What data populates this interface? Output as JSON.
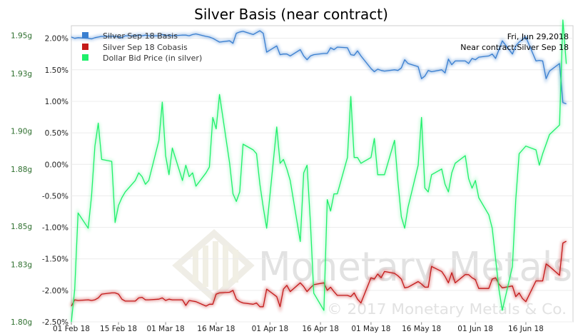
{
  "chart_data": {
    "type": "line",
    "title": "Silver Basis (near contract)",
    "info": [
      "Fri, Jun 29,2018",
      "Near contract:Silver Sep 18"
    ],
    "watermark": {
      "brand": "Monetary Metals",
      "copyright": "© 2017 Monetary Metals & Co."
    },
    "x_labels": [
      "01 Feb 18",
      "15 Feb 18",
      "01 Mar 18",
      "16 Mar 18",
      "01 Apr 18",
      "16 Apr 18",
      "01 May 18",
      "16 May 18",
      "01 Jun 18",
      "16 Jun 18"
    ],
    "x_label_days": [
      0,
      14,
      28,
      43,
      59,
      74,
      89,
      104,
      120,
      135
    ],
    "x_range": [
      0,
      149
    ],
    "left_axis": {
      "ticks": [
        "1.80g",
        "1.83g",
        "1.85g",
        "1.88g",
        "1.90g",
        "1.93g",
        "1.95g"
      ],
      "range": [
        1.8,
        1.955
      ]
    },
    "right_axis": {
      "ticks": [
        "2.00%",
        "1.50%",
        "1.00%",
        "0.50%",
        "0.00%",
        "-0.50%",
        "-1.00%",
        "-1.50%",
        "-2.00%",
        "-2.50%"
      ],
      "range": [
        -2.5,
        2.2
      ]
    },
    "colors": {
      "basis": "#3a7fd0",
      "cobasis": "#c41a1a",
      "price": "#1ef06a"
    },
    "series": [
      {
        "name": "Silver Sep 18 Basis",
        "axis": "right",
        "color_key": "basis",
        "x": [
          0,
          1,
          2,
          5,
          6,
          7,
          8,
          9,
          12,
          13,
          14,
          15,
          16,
          19,
          20,
          21,
          22,
          23,
          26,
          27,
          28,
          29,
          30,
          33,
          34,
          35,
          36,
          37,
          40,
          41,
          42,
          43,
          44,
          47,
          48,
          49,
          50,
          51,
          54,
          55,
          56,
          57,
          58,
          61,
          62,
          63,
          64,
          65,
          68,
          69,
          70,
          71,
          72,
          75,
          76,
          77,
          78,
          79,
          82,
          83,
          84,
          85,
          86,
          89,
          90,
          91,
          92,
          93,
          96,
          97,
          98,
          99,
          100,
          103,
          104,
          105,
          106,
          107,
          110,
          111,
          112,
          113,
          114,
          117,
          118,
          119,
          120,
          121,
          124,
          125,
          126,
          127,
          128,
          131,
          132,
          133,
          134,
          135,
          138,
          139,
          140,
          141,
          142,
          145,
          146,
          147
        ],
        "y": [
          2.02,
          2.0,
          2.01,
          2.0,
          1.99,
          2.01,
          2.02,
          2.03,
          2.03,
          2.03,
          2.02,
          2.01,
          2.04,
          2.04,
          2.05,
          2.04,
          2.05,
          2.04,
          2.04,
          2.06,
          2.04,
          2.05,
          2.04,
          2.05,
          2.05,
          2.04,
          2.06,
          2.07,
          2.03,
          2.02,
          2.0,
          1.97,
          1.94,
          1.96,
          1.92,
          2.08,
          2.1,
          2.11,
          2.06,
          2.09,
          2.12,
          2.08,
          1.78,
          1.88,
          1.74,
          1.75,
          1.75,
          1.72,
          1.82,
          1.72,
          1.66,
          1.72,
          1.74,
          1.76,
          1.76,
          1.85,
          1.82,
          1.86,
          1.85,
          1.74,
          1.73,
          1.8,
          1.72,
          1.52,
          1.47,
          1.51,
          1.49,
          1.48,
          1.5,
          1.49,
          1.53,
          1.66,
          1.6,
          1.55,
          1.36,
          1.4,
          1.49,
          1.47,
          1.5,
          1.45,
          1.67,
          1.58,
          1.64,
          1.64,
          1.6,
          1.68,
          1.66,
          1.7,
          1.72,
          1.75,
          1.68,
          1.82,
          1.96,
          1.75,
          1.88,
          1.94,
          1.98,
          2.02,
          1.64,
          1.65,
          1.64,
          1.36,
          1.48,
          1.6,
          0.98,
          0.96
        ]
      },
      {
        "name": "Silver Sep 18 Cobasis",
        "axis": "right",
        "color_key": "cobasis",
        "x": [
          0,
          1,
          2,
          5,
          6,
          7,
          8,
          9,
          12,
          13,
          14,
          15,
          16,
          19,
          20,
          21,
          22,
          23,
          26,
          27,
          28,
          29,
          30,
          33,
          34,
          35,
          36,
          37,
          40,
          41,
          42,
          43,
          44,
          47,
          48,
          49,
          50,
          51,
          54,
          55,
          56,
          57,
          58,
          61,
          62,
          63,
          64,
          65,
          68,
          69,
          70,
          71,
          72,
          75,
          76,
          77,
          78,
          79,
          82,
          83,
          84,
          85,
          86,
          89,
          90,
          91,
          92,
          93,
          96,
          97,
          98,
          99,
          100,
          103,
          104,
          105,
          106,
          107,
          110,
          111,
          112,
          113,
          114,
          117,
          118,
          119,
          120,
          121,
          124,
          125,
          126,
          127,
          128,
          131,
          132,
          133,
          134,
          135,
          138,
          139,
          140,
          141,
          142,
          145,
          146,
          147
        ],
        "y": [
          -2.25,
          -2.15,
          -2.16,
          -2.15,
          -2.16,
          -2.15,
          -2.12,
          -2.06,
          -2.04,
          -2.04,
          -2.06,
          -2.14,
          -2.17,
          -2.17,
          -2.12,
          -2.11,
          -2.15,
          -2.15,
          -2.14,
          -2.12,
          -2.16,
          -2.14,
          -2.15,
          -2.15,
          -2.24,
          -2.16,
          -2.17,
          -2.18,
          -2.25,
          -2.22,
          -2.22,
          -2.06,
          -2.04,
          -2.03,
          -2.0,
          -2.14,
          -2.18,
          -2.2,
          -2.22,
          -2.2,
          -2.26,
          -2.26,
          -1.98,
          -2.1,
          -2.26,
          -1.98,
          -1.92,
          -2.02,
          -1.88,
          -1.94,
          -2.02,
          -1.96,
          -1.91,
          -1.88,
          -2.0,
          -1.95,
          -2.02,
          -2.08,
          -2.08,
          -2.1,
          -2.04,
          -2.14,
          -2.2,
          -1.8,
          -1.82,
          -1.74,
          -1.8,
          -1.7,
          -1.73,
          -1.77,
          -1.82,
          -1.96,
          -1.95,
          -1.86,
          -1.9,
          -1.95,
          -1.95,
          -1.62,
          -1.7,
          -1.78,
          -1.88,
          -1.72,
          -1.88,
          -1.75,
          -1.75,
          -1.8,
          -1.83,
          -1.97,
          -1.97,
          -1.82,
          -1.8,
          -1.9,
          -1.96,
          -1.93,
          -2.1,
          -2.04,
          -2.13,
          -2.18,
          -1.85,
          -1.85,
          -1.85,
          -1.58,
          -1.62,
          -1.76,
          -1.25,
          -1.22
        ]
      },
      {
        "name": "Dollar Bid Price (in silver)",
        "axis": "left",
        "color_key": "price",
        "x": [
          0,
          1,
          2,
          5,
          6,
          7,
          8,
          9,
          12,
          13,
          14,
          15,
          16,
          19,
          20,
          21,
          22,
          23,
          26,
          27,
          28,
          29,
          30,
          33,
          34,
          35,
          36,
          37,
          40,
          41,
          42,
          43,
          44,
          47,
          48,
          49,
          50,
          51,
          54,
          55,
          56,
          57,
          58,
          61,
          62,
          63,
          64,
          65,
          68,
          69,
          70,
          71,
          72,
          75,
          76,
          77,
          78,
          79,
          82,
          83,
          84,
          85,
          86,
          89,
          90,
          91,
          92,
          93,
          96,
          97,
          98,
          99,
          100,
          103,
          104,
          105,
          106,
          107,
          110,
          111,
          112,
          113,
          114,
          117,
          118,
          119,
          120,
          121,
          124,
          125,
          126,
          127,
          128,
          131,
          132,
          133,
          134,
          135,
          138,
          139,
          140,
          141,
          142,
          145,
          146,
          147
        ],
        "y": [
          1.8,
          1.817,
          1.857,
          1.849,
          1.866,
          1.892,
          1.904,
          1.885,
          1.884,
          1.852,
          1.861,
          1.865,
          1.868,
          1.874,
          1.878,
          1.876,
          1.872,
          1.874,
          1.895,
          1.915,
          1.887,
          1.877,
          1.891,
          1.874,
          1.882,
          1.876,
          1.878,
          1.871,
          1.878,
          1.881,
          1.907,
          1.901,
          1.919,
          1.883,
          1.867,
          1.863,
          1.868,
          1.893,
          1.89,
          1.888,
          1.872,
          1.86,
          1.849,
          1.902,
          1.883,
          1.885,
          1.88,
          1.874,
          1.842,
          1.878,
          1.882,
          1.852,
          1.815,
          1.806,
          1.864,
          1.858,
          1.867,
          1.867,
          1.886,
          1.918,
          1.886,
          1.886,
          1.883,
          1.886,
          1.896,
          1.877,
          1.877,
          1.877,
          1.895,
          1.873,
          1.855,
          1.849,
          1.86,
          1.882,
          1.907,
          1.87,
          1.868,
          1.877,
          1.88,
          1.872,
          1.868,
          1.878,
          1.883,
          1.887,
          1.875,
          1.87,
          1.874,
          1.865,
          1.856,
          1.849,
          1.833,
          1.817,
          1.806,
          1.829,
          1.864,
          1.888,
          1.89,
          1.892,
          1.89,
          1.882,
          1.888,
          1.893,
          1.898,
          1.903,
          1.958,
          1.935
        ]
      }
    ]
  }
}
